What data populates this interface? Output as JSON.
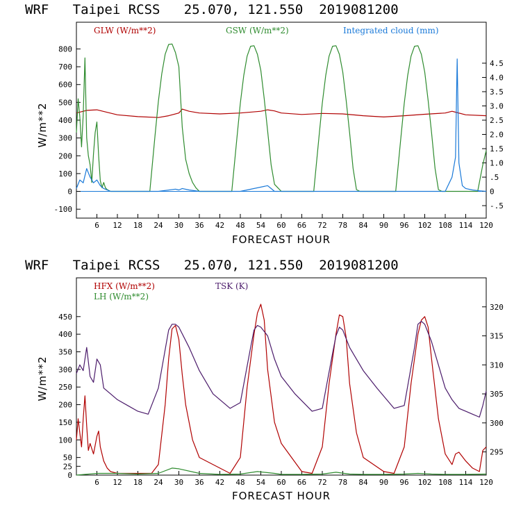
{
  "chart_data": [
    {
      "type": "line",
      "header": "WRF   Taipei RCSS   25.070, 121.550  2019081200",
      "xlabel": "FORECAST HOUR",
      "ylabel": "W/m**2",
      "xlim": [
        0,
        120
      ],
      "x_ticks": [
        6,
        12,
        18,
        24,
        30,
        36,
        42,
        48,
        54,
        60,
        66,
        72,
        78,
        84,
        90,
        96,
        102,
        108,
        114,
        120
      ],
      "ylim": [
        -150,
        950
      ],
      "y_ticks": [
        -100,
        0,
        100,
        200,
        300,
        400,
        500,
        600,
        700,
        800
      ],
      "y2lim": [
        -0.9375,
        5.9375
      ],
      "y2_ticks": [
        "-.5",
        "0",
        ".5",
        "1.0",
        "1.5",
        "2.0",
        "2.5",
        "3.0",
        "3.5",
        "4.0",
        "4.5"
      ],
      "series": [
        {
          "name": "GLW (W/m**2)",
          "axis": "left",
          "color": "#b00000",
          "x": [
            0,
            3,
            6,
            12,
            18,
            24,
            27,
            30,
            31,
            33,
            36,
            42,
            48,
            54,
            56,
            58,
            60,
            66,
            72,
            78,
            84,
            90,
            96,
            102,
            108,
            110,
            111,
            114,
            120
          ],
          "y": [
            440,
            455,
            458,
            430,
            420,
            415,
            425,
            440,
            462,
            450,
            440,
            435,
            440,
            450,
            458,
            452,
            440,
            432,
            438,
            435,
            425,
            418,
            425,
            433,
            440,
            450,
            445,
            430,
            425
          ]
        },
        {
          "name": "GSW (W/m**2)",
          "axis": "left",
          "color": "#2e8b2e",
          "x": [
            0,
            0.5,
            1,
            1.5,
            2,
            2.5,
            3,
            3.5,
            4,
            4.5,
            5,
            5.5,
            6,
            6.5,
            7,
            7.5,
            8,
            8.5,
            9,
            9.5,
            10,
            21.5,
            23,
            24,
            25,
            26,
            27,
            28,
            29,
            30,
            31,
            32,
            33,
            34,
            35,
            36,
            45.5,
            47,
            48,
            49,
            50,
            51,
            52,
            53,
            54,
            55,
            56,
            57,
            58,
            59,
            60,
            69.5,
            71,
            72,
            73,
            74,
            75,
            76,
            77,
            78,
            79,
            80,
            81,
            82,
            83,
            84,
            93.5,
            95,
            96,
            97,
            98,
            99,
            100,
            101,
            102,
            103,
            104,
            105,
            106,
            107,
            108,
            117.5,
            119,
            120
          ],
          "y": [
            330,
            520,
            420,
            250,
            430,
            750,
            300,
            200,
            150,
            50,
            210,
            330,
            390,
            200,
            60,
            20,
            50,
            20,
            10,
            5,
            0,
            0,
            310,
            505,
            660,
            770,
            825,
            828,
            780,
            700,
            360,
            180,
            100,
            50,
            20,
            0,
            0,
            300,
            495,
            650,
            760,
            815,
            818,
            770,
            680,
            520,
            340,
            150,
            40,
            20,
            0,
            0,
            300,
            495,
            650,
            760,
            815,
            818,
            770,
            670,
            510,
            330,
            130,
            10,
            0,
            0,
            0,
            300,
            495,
            650,
            760,
            815,
            818,
            770,
            670,
            510,
            330,
            130,
            10,
            0,
            0,
            0,
            150,
            230
          ]
        },
        {
          "name": "Integrated cloud (mm)",
          "axis": "right",
          "color": "#1878d8",
          "x": [
            0,
            1,
            2,
            3,
            4,
            5,
            6,
            7,
            8,
            9,
            10,
            24,
            29,
            30,
            31,
            33,
            36,
            48,
            56,
            57,
            58,
            60,
            108,
            110,
            111,
            111.5,
            112,
            113,
            114,
            116,
            118,
            120
          ],
          "y": [
            0.1,
            0.4,
            0.3,
            0.8,
            0.5,
            0.3,
            0.4,
            0.2,
            0.1,
            0.05,
            0,
            0,
            0.08,
            0.05,
            0.1,
            0.05,
            0,
            0,
            0.2,
            0.1,
            0,
            0,
            0,
            0.5,
            1.2,
            4.65,
            1.0,
            0.2,
            0.1,
            0.05,
            0.02,
            0
          ]
        }
      ]
    },
    {
      "type": "line",
      "header": "WRF   Taipei RCSS   25.070, 121.550  2019081200",
      "xlabel": "FORECAST HOUR",
      "ylabel": "W/m**2",
      "xlim": [
        0,
        120
      ],
      "x_ticks": [
        6,
        12,
        18,
        24,
        30,
        36,
        42,
        48,
        54,
        60,
        66,
        72,
        78,
        84,
        90,
        96,
        102,
        108,
        114,
        120
      ],
      "ylim": [
        0,
        560
      ],
      "y_ticks": [
        0,
        25,
        50,
        100,
        150,
        200,
        250,
        300,
        350,
        400,
        450
      ],
      "y2lim": [
        291,
        325
      ],
      "y2_ticks": [
        295,
        300,
        305,
        310,
        315,
        320
      ],
      "series": [
        {
          "name": "HFX (W/m**2)",
          "axis": "left",
          "color": "#b00000",
          "x": [
            0,
            0.5,
            1,
            1.5,
            2,
            2.5,
            3,
            3.5,
            4,
            5,
            6,
            6.5,
            7,
            8,
            9,
            10,
            12,
            18,
            22,
            24,
            26,
            27,
            28,
            29,
            30,
            31,
            32,
            34,
            36,
            42,
            45,
            48,
            50,
            52,
            53,
            54,
            55,
            56,
            58,
            60,
            66,
            69,
            72,
            74,
            76,
            77,
            78,
            79,
            80,
            82,
            84,
            90,
            93,
            96,
            98,
            100,
            101,
            102,
            103,
            104,
            106,
            108,
            110,
            111,
            112,
            114,
            116,
            118,
            119,
            120
          ],
          "y": [
            100,
            160,
            120,
            80,
            160,
            225,
            140,
            70,
            90,
            60,
            110,
            125,
            80,
            40,
            20,
            10,
            5,
            5,
            5,
            30,
            200,
            330,
            415,
            425,
            385,
            285,
            200,
            100,
            50,
            20,
            5,
            50,
            250,
            400,
            460,
            485,
            440,
            300,
            150,
            90,
            10,
            5,
            80,
            260,
            400,
            455,
            450,
            390,
            260,
            120,
            50,
            10,
            5,
            80,
            260,
            400,
            440,
            450,
            420,
            330,
            160,
            60,
            30,
            60,
            65,
            40,
            20,
            10,
            70,
            80
          ]
        },
        {
          "name": "LH (W/m**2)",
          "axis": "left",
          "color": "#2e8b2e",
          "x": [
            0,
            6,
            12,
            18,
            24,
            28,
            30,
            36,
            42,
            48,
            53,
            58,
            60,
            66,
            72,
            76,
            80,
            84,
            90,
            96,
            100,
            104,
            108,
            114,
            120
          ],
          "y": [
            0,
            5,
            5,
            3,
            5,
            20,
            18,
            5,
            2,
            3,
            10,
            5,
            2,
            2,
            3,
            8,
            3,
            2,
            2,
            3,
            5,
            3,
            2,
            2,
            3
          ]
        },
        {
          "name": "TSK (K)",
          "axis": "right",
          "color": "#4a1a6a",
          "x": [
            0,
            1,
            2,
            3,
            4,
            5,
            6,
            7,
            8,
            10,
            12,
            15,
            18,
            21,
            24,
            27,
            28,
            29,
            30,
            33,
            36,
            40,
            45,
            48,
            51,
            52,
            53,
            54,
            56,
            58,
            60,
            64,
            69,
            72,
            75,
            76,
            77,
            78,
            80,
            84,
            88,
            93,
            96,
            99,
            100,
            101,
            102,
            104,
            108,
            110,
            112,
            114,
            116,
            118,
            119,
            120
          ],
          "y": [
            308.5,
            310,
            309,
            313,
            308,
            307,
            311,
            310,
            306,
            305,
            304,
            303,
            302,
            301.5,
            306,
            316,
            317,
            317,
            316.5,
            313,
            309,
            305,
            302.5,
            303.5,
            313,
            316,
            316.8,
            316.5,
            315,
            311,
            308,
            305,
            302,
            302.5,
            312,
            315,
            316.5,
            316,
            313,
            309,
            306,
            302.5,
            303,
            313,
            317,
            317.5,
            317,
            314,
            306,
            304,
            302.5,
            302,
            301.5,
            301,
            303,
            305.5
          ]
        }
      ]
    }
  ],
  "legend": {
    "top": [
      "GLW (W/m**2)",
      "GSW (W/m**2)",
      "Integrated cloud (mm)"
    ],
    "bottom": [
      "HFX (W/m**2)",
      "LH (W/m**2)",
      "TSK (K)"
    ]
  },
  "colors": {
    "red": "#b00000",
    "green": "#2e8b2e",
    "blue": "#1878d8",
    "purple": "#4a1a6a"
  }
}
